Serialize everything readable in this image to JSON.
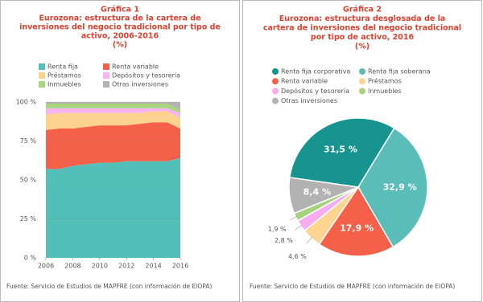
{
  "chart_data": [
    {
      "type": "area",
      "label": "Gráfica 1",
      "title": [
        "Eurozona: estructura de la cartera de",
        "inversiones del negocio tradicional por tipo de",
        "activo, 2006-2016"
      ],
      "subtitle": "(%)",
      "x": [
        2006,
        2007,
        2008,
        2009,
        2010,
        2011,
        2012,
        2013,
        2014,
        2015,
        2016
      ],
      "xlim": [
        2006,
        2016
      ],
      "xticks": [
        2006,
        2008,
        2010,
        2012,
        2014,
        2016
      ],
      "ylim": [
        0,
        100
      ],
      "yticks": [
        {
          "value": 0,
          "label": "0 %"
        },
        {
          "value": 25,
          "label": "25 %"
        },
        {
          "value": 50,
          "label": "50 %"
        },
        {
          "value": 75,
          "label": "75 %"
        },
        {
          "value": 100,
          "label": "100 %"
        }
      ],
      "grid": true,
      "stacked": true,
      "series": [
        {
          "name": "Renta fija",
          "color": "#52c0b8",
          "values": [
            57,
            57,
            59,
            60,
            61,
            61,
            62,
            62,
            62,
            62,
            64
          ]
        },
        {
          "name": "Renta variable",
          "color": "#f4604a",
          "values": [
            25,
            26,
            24,
            24,
            24,
            24,
            23,
            24,
            25,
            25,
            19
          ]
        },
        {
          "name": "Préstamos",
          "color": "#fdd28e",
          "values": [
            10,
            10,
            10,
            9,
            8,
            8,
            8,
            7,
            7,
            7,
            7
          ]
        },
        {
          "name": "Depósitos y tesorería",
          "color": "#f8b4f0",
          "values": [
            4,
            3,
            3,
            3,
            3,
            3,
            3,
            3,
            2,
            2,
            3
          ]
        },
        {
          "name": "Inmuebles",
          "color": "#a8d67e",
          "values": [
            3,
            3,
            3,
            3,
            3,
            3,
            3,
            3,
            3,
            3,
            2
          ]
        },
        {
          "name": "Otras inversiones",
          "color": "#b4b4b4",
          "values": [
            1,
            1,
            1,
            1,
            1,
            1,
            1,
            1,
            1,
            1,
            5
          ]
        }
      ],
      "source": "Fuente: Servicio de Estudios de MAPFRE (con información de EIOPA)"
    },
    {
      "type": "pie",
      "label": "Gráfica 2",
      "title": [
        "Eurozona: estructura desglosada de la",
        "cartera de inversiones del negocio tradicional",
        "por tipo de activo, 2016"
      ],
      "subtitle": "(%)",
      "categories": [
        "Renta fija corporativa",
        "Renta fija soberana",
        "Renta variable",
        "Préstamos",
        "Depósitos y tesorería",
        "Inmuebles",
        "Otras inversiones"
      ],
      "values": [
        31.5,
        32.9,
        17.9,
        4.6,
        2.8,
        1.9,
        8.4
      ],
      "value_labels": [
        "31,5 %",
        "32,9 %",
        "17,9 %",
        "4,6 %",
        "2,8 %",
        "1,9 %",
        "8,4 %"
      ],
      "colors": [
        "#17948f",
        "#5abdb8",
        "#f4604a",
        "#fdd590",
        "#f8acf0",
        "#a6d47c",
        "#b2b2b2"
      ],
      "source": "Fuente: Servicio de Estudios de MAPFRE (con información de EIOPA)"
    }
  ]
}
